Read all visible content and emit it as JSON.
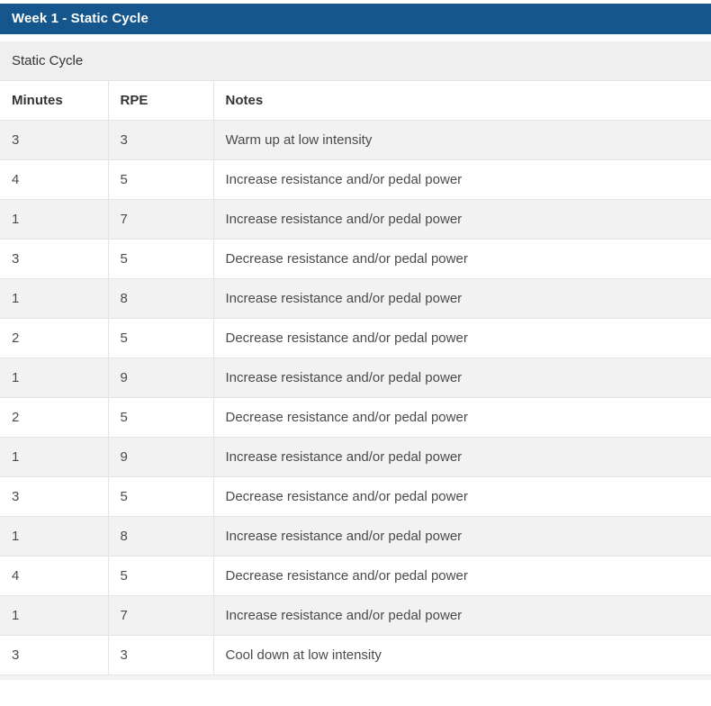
{
  "title": "Week 1 - Static Cycle",
  "subtitle": "Static Cycle",
  "table": {
    "headers": [
      "Minutes",
      "RPE",
      "Notes"
    ],
    "rows": [
      [
        "3",
        "3",
        "Warm up at low intensity"
      ],
      [
        "4",
        "5",
        "Increase resistance and/or pedal power"
      ],
      [
        "1",
        "7",
        "Increase resistance and/or pedal power"
      ],
      [
        "3",
        "5",
        "Decrease resistance and/or pedal power"
      ],
      [
        "1",
        "8",
        "Increase resistance and/or pedal power"
      ],
      [
        "2",
        "5",
        "Decrease resistance and/or pedal power"
      ],
      [
        "1",
        "9",
        "Increase resistance and/or pedal power"
      ],
      [
        "2",
        "5",
        "Decrease resistance and/or pedal power"
      ],
      [
        "1",
        "9",
        "Increase resistance and/or pedal power"
      ],
      [
        "3",
        "5",
        "Decrease resistance and/or pedal power"
      ],
      [
        "1",
        "8",
        "Increase resistance and/or pedal power"
      ],
      [
        "4",
        "5",
        "Decrease resistance and/or pedal power"
      ],
      [
        "1",
        "7",
        "Increase resistance and/or pedal power"
      ],
      [
        "3",
        "3",
        "Cool down at low intensity"
      ]
    ]
  },
  "colors": {
    "header_bg": "#15568d",
    "title_text": "#ffffff",
    "subtitle_bg": "#efefef",
    "stripe_bg": "#f2f2f2",
    "border": "#e4e4e4",
    "heading_text": "#333333",
    "body_text": "#4a4a4a"
  }
}
